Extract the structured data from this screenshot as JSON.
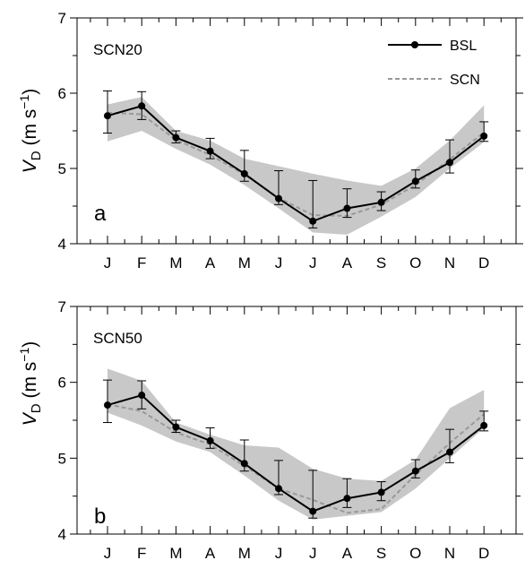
{
  "chart_data": [
    {
      "type": "line",
      "panel_label": "a",
      "title": "SCN20",
      "ylabel": {
        "main": "V",
        "sub": "D",
        "unit": " (m s",
        "sup": "−1",
        "close": ")"
      },
      "categories": [
        "J",
        "F",
        "M",
        "A",
        "M",
        "J",
        "J",
        "A",
        "S",
        "O",
        "N",
        "D"
      ],
      "ylim": [
        4,
        7
      ],
      "yticks": [
        4,
        5,
        6,
        7
      ],
      "legend_position": "top-right",
      "series": [
        {
          "name": "BSL",
          "style": "solid-black-with-markers",
          "values": [
            5.7,
            5.83,
            5.41,
            5.23,
            4.93,
            4.6,
            4.3,
            4.47,
            4.55,
            4.83,
            5.08,
            5.43
          ],
          "error_low": [
            5.47,
            5.65,
            5.34,
            5.13,
            4.83,
            4.52,
            4.21,
            4.35,
            4.44,
            4.74,
            4.94,
            5.36
          ],
          "error_high": [
            6.03,
            6.02,
            5.5,
            5.4,
            5.24,
            4.97,
            4.84,
            4.73,
            4.69,
            4.98,
            5.38,
            5.62
          ]
        },
        {
          "name": "SCN",
          "style": "dashed-gray",
          "values": [
            5.74,
            5.72,
            5.38,
            5.18,
            4.92,
            4.61,
            4.38,
            4.37,
            4.52,
            4.78,
            5.12,
            5.48
          ],
          "band_low": [
            5.36,
            5.5,
            5.26,
            5.05,
            4.78,
            4.47,
            4.15,
            4.12,
            4.36,
            4.62,
            5.0,
            5.35
          ],
          "band_high": [
            5.85,
            5.95,
            5.5,
            5.37,
            5.13,
            5.03,
            4.93,
            4.84,
            4.77,
            5.0,
            5.37,
            5.84
          ]
        }
      ]
    },
    {
      "type": "line",
      "panel_label": "b",
      "title": "SCN50",
      "ylabel": {
        "main": "V",
        "sub": "D",
        "unit": " (m s",
        "sup": "−1",
        "close": ")"
      },
      "categories": [
        "J",
        "F",
        "M",
        "A",
        "M",
        "J",
        "J",
        "A",
        "S",
        "O",
        "N",
        "D"
      ],
      "ylim": [
        4,
        7
      ],
      "yticks": [
        4,
        5,
        6,
        7
      ],
      "series": [
        {
          "name": "BSL",
          "style": "solid-black-with-markers",
          "values": [
            5.7,
            5.83,
            5.41,
            5.23,
            4.93,
            4.6,
            4.3,
            4.47,
            4.55,
            4.83,
            5.08,
            5.43
          ],
          "error_low": [
            5.47,
            5.65,
            5.34,
            5.13,
            4.83,
            4.52,
            4.21,
            4.35,
            4.44,
            4.74,
            4.94,
            5.36
          ],
          "error_high": [
            6.03,
            6.02,
            5.5,
            5.4,
            5.24,
            4.97,
            4.84,
            4.73,
            4.69,
            4.98,
            5.38,
            5.62
          ]
        },
        {
          "name": "SCN",
          "style": "dashed-gray",
          "values": [
            5.71,
            5.62,
            5.34,
            5.18,
            4.9,
            4.6,
            4.45,
            4.28,
            4.33,
            4.78,
            5.2,
            5.58
          ],
          "band_low": [
            5.6,
            5.43,
            5.22,
            5.08,
            4.77,
            4.44,
            4.19,
            4.24,
            4.29,
            4.6,
            5.0,
            5.4
          ],
          "band_high": [
            6.18,
            6.02,
            5.47,
            5.31,
            5.17,
            5.14,
            4.86,
            4.73,
            4.7,
            4.98,
            5.66,
            5.9
          ]
        }
      ]
    }
  ],
  "colors": {
    "bsl": "#000000",
    "scn": "#999999",
    "band": "#c8c8c8"
  }
}
